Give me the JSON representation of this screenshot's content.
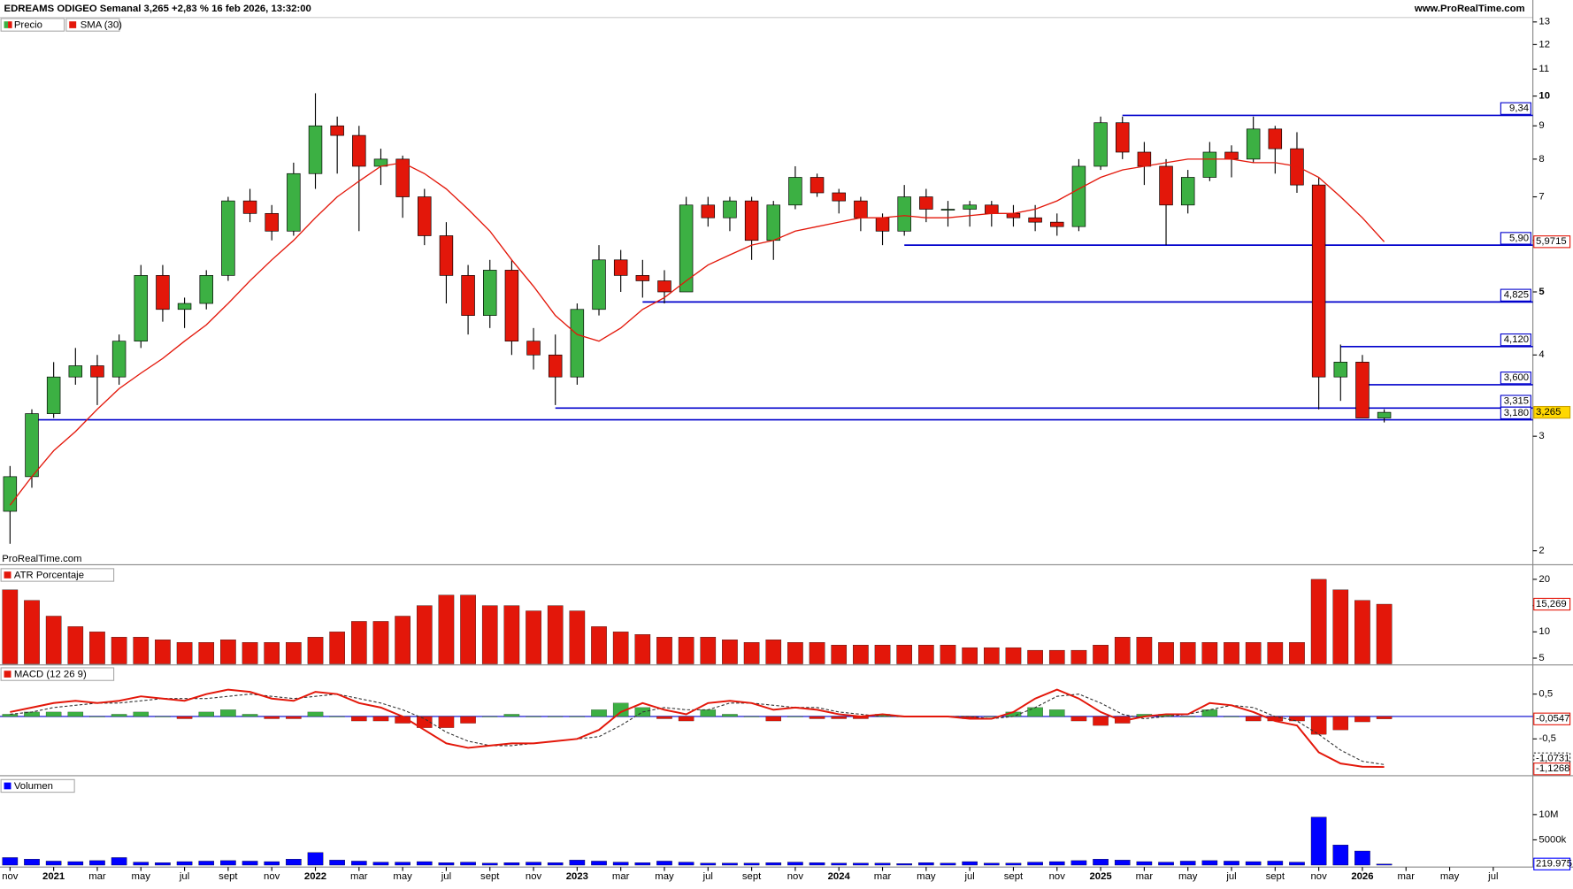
{
  "header": {
    "title": "EDREAMS ODIGEO Semanal 3,265 +2,83 % 16 feb 2026, 13:32:00",
    "site": "www.ProRealTime.com",
    "watermark": "ProRealTime.com"
  },
  "chart_data": [
    {
      "type": "candlestick",
      "legend": [
        "Precio",
        "SMA (30)"
      ],
      "log_scale": true,
      "up_color": "#3cb043",
      "down_color": "#e3170a",
      "x": [
        "2020-11",
        "2020-12",
        "2021-01",
        "2021-02",
        "2021-03",
        "2021-04",
        "2021-05",
        "2021-06",
        "2021-07",
        "2021-08",
        "2021-09",
        "2021-10",
        "2021-11",
        "2021-12",
        "2022-01",
        "2022-02",
        "2022-03",
        "2022-04",
        "2022-05",
        "2022-06",
        "2022-07",
        "2022-08",
        "2022-09",
        "2022-10",
        "2022-11",
        "2022-12",
        "2023-01",
        "2023-02",
        "2023-03",
        "2023-04",
        "2023-05",
        "2023-06",
        "2023-07",
        "2023-08",
        "2023-09",
        "2023-10",
        "2023-11",
        "2023-12",
        "2024-01",
        "2024-02",
        "2024-03",
        "2024-04",
        "2024-05",
        "2024-06",
        "2024-07",
        "2024-08",
        "2024-09",
        "2024-10",
        "2024-11",
        "2024-12",
        "2025-01",
        "2025-02",
        "2025-03",
        "2025-04",
        "2025-05",
        "2025-06",
        "2025-07",
        "2025-08",
        "2025-09",
        "2025-10",
        "2025-11",
        "2025-12",
        "2026-01",
        "2026-02"
      ],
      "open": [
        2.3,
        2.6,
        3.25,
        3.7,
        3.85,
        3.7,
        4.2,
        5.3,
        4.7,
        4.8,
        5.3,
        6.9,
        6.6,
        6.2,
        7.6,
        9.0,
        8.7,
        7.8,
        8.0,
        7.0,
        6.1,
        5.3,
        4.6,
        5.4,
        4.2,
        4.0,
        3.7,
        4.7,
        5.6,
        5.3,
        5.2,
        5.0,
        6.8,
        6.5,
        6.9,
        6.0,
        6.8,
        7.5,
        7.1,
        6.9,
        6.5,
        6.2,
        7.0,
        6.7,
        6.7,
        6.8,
        6.6,
        6.5,
        6.4,
        6.3,
        7.8,
        9.1,
        8.2,
        7.8,
        6.8,
        7.5,
        8.2,
        8.0,
        8.9,
        8.3,
        7.3,
        3.7,
        3.9,
        3.2
      ],
      "high": [
        2.7,
        3.3,
        3.9,
        4.1,
        4.0,
        4.3,
        5.5,
        5.5,
        4.9,
        5.4,
        7.0,
        7.2,
        6.8,
        7.9,
        10.1,
        9.3,
        9.0,
        8.3,
        8.1,
        7.2,
        6.4,
        5.5,
        5.6,
        5.6,
        4.4,
        4.3,
        4.8,
        5.9,
        5.8,
        5.6,
        5.4,
        7.0,
        7.0,
        7.0,
        7.0,
        6.9,
        7.8,
        7.6,
        7.2,
        7.0,
        6.6,
        7.3,
        7.2,
        6.9,
        6.9,
        6.9,
        6.8,
        6.8,
        6.6,
        8.0,
        9.3,
        9.3,
        8.5,
        8.0,
        7.7,
        8.5,
        8.4,
        9.3,
        9.0,
        8.8,
        7.5,
        4.15,
        4.0,
        3.3
      ],
      "low": [
        2.05,
        2.5,
        3.2,
        3.6,
        3.35,
        3.6,
        4.1,
        4.5,
        4.4,
        4.7,
        5.2,
        6.4,
        6.0,
        6.1,
        7.2,
        7.6,
        6.2,
        7.3,
        6.5,
        5.9,
        4.8,
        4.3,
        4.4,
        4.0,
        3.8,
        3.35,
        3.6,
        4.6,
        5.0,
        4.9,
        4.8,
        5.0,
        6.3,
        6.2,
        5.6,
        5.6,
        6.7,
        7.0,
        6.6,
        6.2,
        5.9,
        6.1,
        6.4,
        6.3,
        6.3,
        6.3,
        6.3,
        6.2,
        6.1,
        6.2,
        7.7,
        8.0,
        7.3,
        5.9,
        6.6,
        7.4,
        7.5,
        7.9,
        7.6,
        7.1,
        3.3,
        3.4,
        3.2,
        3.15
      ],
      "close": [
        2.6,
        3.25,
        3.7,
        3.85,
        3.7,
        4.2,
        5.3,
        4.7,
        4.8,
        5.3,
        6.9,
        6.6,
        6.2,
        7.6,
        9.0,
        8.7,
        7.8,
        8.0,
        7.0,
        6.1,
        5.3,
        4.6,
        5.4,
        4.2,
        4.0,
        3.7,
        4.7,
        5.6,
        5.3,
        5.2,
        5.0,
        6.8,
        6.5,
        6.9,
        6.0,
        6.8,
        7.5,
        7.1,
        6.9,
        6.5,
        6.2,
        7.0,
        6.7,
        6.7,
        6.8,
        6.6,
        6.5,
        6.4,
        6.3,
        7.8,
        9.1,
        8.2,
        7.8,
        6.8,
        7.5,
        8.2,
        8.0,
        8.9,
        8.3,
        7.3,
        3.7,
        3.9,
        3.2,
        3.265
      ],
      "close_last_label": "3,265",
      "series": [
        {
          "name": "SMA (30)",
          "color": "#e3170a",
          "last_label": "5,9715",
          "values": [
            2.35,
            2.6,
            2.85,
            3.05,
            3.3,
            3.55,
            3.75,
            3.95,
            4.2,
            4.45,
            4.8,
            5.2,
            5.6,
            6.0,
            6.5,
            7.0,
            7.4,
            7.8,
            7.9,
            7.6,
            7.2,
            6.7,
            6.2,
            5.6,
            5.1,
            4.6,
            4.3,
            4.2,
            4.4,
            4.7,
            4.9,
            5.2,
            5.5,
            5.7,
            5.9,
            6.0,
            6.2,
            6.3,
            6.4,
            6.5,
            6.5,
            6.55,
            6.5,
            6.5,
            6.55,
            6.6,
            6.6,
            6.7,
            6.9,
            7.2,
            7.5,
            7.7,
            7.8,
            7.9,
            8.0,
            8.0,
            8.0,
            7.9,
            7.9,
            7.8,
            7.5,
            7.0,
            6.5,
            5.9715
          ]
        }
      ],
      "levels": [
        {
          "value": 9.34,
          "label": "9,34",
          "from": "2025-02"
        },
        {
          "value": 5.9,
          "label": "5,90",
          "from": "2024-04"
        },
        {
          "value": 4.825,
          "label": "4,825",
          "from": "2023-04"
        },
        {
          "value": 4.12,
          "label": "4,120",
          "from": "2025-12"
        },
        {
          "value": 3.6,
          "label": "3,600",
          "from": "2026-01"
        },
        {
          "value": 3.315,
          "label": "3,315",
          "from": "2022-12"
        },
        {
          "value": 3.18,
          "label": "3,180",
          "from": "2020-12"
        }
      ],
      "level_color": "#0000cc",
      "ylim": [
        1.91,
        14.05
      ],
      "yticks": [
        2,
        3,
        4,
        5,
        6,
        7,
        8,
        9,
        10,
        11,
        12,
        13
      ],
      "xlim": [
        "2020-11",
        "2026-09"
      ],
      "xticks": [
        {
          "value": "2020-11",
          "label": "nov"
        },
        {
          "value": "2021-01",
          "label": "2021"
        },
        {
          "value": "2021-03",
          "label": "mar"
        },
        {
          "value": "2021-05",
          "label": "may"
        },
        {
          "value": "2021-07",
          "label": "jul"
        },
        {
          "value": "2021-09",
          "label": "sept"
        },
        {
          "value": "2021-11",
          "label": "nov"
        },
        {
          "value": "2022-01",
          "label": "2022"
        },
        {
          "value": "2022-03",
          "label": "mar"
        },
        {
          "value": "2022-05",
          "label": "may"
        },
        {
          "value": "2022-07",
          "label": "jul"
        },
        {
          "value": "2022-09",
          "label": "sept"
        },
        {
          "value": "2022-11",
          "label": "nov"
        },
        {
          "value": "2023-01",
          "label": "2023"
        },
        {
          "value": "2023-03",
          "label": "mar"
        },
        {
          "value": "2023-05",
          "label": "may"
        },
        {
          "value": "2023-07",
          "label": "jul"
        },
        {
          "value": "2023-09",
          "label": "sept"
        },
        {
          "value": "2023-11",
          "label": "nov"
        },
        {
          "value": "2024-01",
          "label": "2024"
        },
        {
          "value": "2024-03",
          "label": "mar"
        },
        {
          "value": "2024-05",
          "label": "may"
        },
        {
          "value": "2024-07",
          "label": "jul"
        },
        {
          "value": "2024-09",
          "label": "sept"
        },
        {
          "value": "2024-11",
          "label": "nov"
        },
        {
          "value": "2025-01",
          "label": "2025"
        },
        {
          "value": "2025-03",
          "label": "mar"
        },
        {
          "value": "2025-05",
          "label": "may"
        },
        {
          "value": "2025-07",
          "label": "jul"
        },
        {
          "value": "2025-09",
          "label": "sept"
        },
        {
          "value": "2025-11",
          "label": "nov"
        },
        {
          "value": "2026-01",
          "label": "2026"
        },
        {
          "value": "2026-03",
          "label": "mar"
        },
        {
          "value": "2026-05",
          "label": "may"
        },
        {
          "value": "2026-07",
          "label": "jul"
        }
      ]
    },
    {
      "type": "bar",
      "legend": "ATR Porcentaje",
      "color": "#e3170a",
      "last_label": "15,269",
      "values": [
        18,
        16,
        13,
        11,
        10,
        9,
        9,
        8.5,
        8,
        8,
        8.5,
        8,
        8,
        8,
        9,
        10,
        12,
        12,
        13,
        15,
        17,
        17,
        15,
        15,
        14,
        15,
        14,
        11,
        10,
        9.5,
        9,
        9,
        9,
        8.5,
        8,
        8.5,
        8,
        8,
        7.5,
        7.5,
        7.5,
        7.5,
        7.5,
        7.5,
        7,
        7,
        7,
        6.5,
        6.5,
        6.5,
        7.5,
        9,
        9,
        8,
        8,
        8,
        8,
        8,
        8,
        8,
        20,
        18,
        16,
        15.269
      ],
      "ylim": [
        3.9,
        22.4
      ],
      "yticks": [
        5,
        10,
        15,
        20
      ]
    },
    {
      "type": "macd",
      "legend": "MACD (12 26 9)",
      "series": [
        {
          "name": "MACD",
          "color": "#e3170a",
          "last_label": "-1,1268",
          "values": [
            0.1,
            0.2,
            0.3,
            0.35,
            0.3,
            0.35,
            0.45,
            0.4,
            0.35,
            0.5,
            0.6,
            0.55,
            0.4,
            0.35,
            0.55,
            0.5,
            0.3,
            0.2,
            0.0,
            -0.3,
            -0.6,
            -0.7,
            -0.65,
            -0.6,
            -0.6,
            -0.55,
            -0.5,
            -0.3,
            0.1,
            0.3,
            0.15,
            0.05,
            0.3,
            0.35,
            0.3,
            0.15,
            0.2,
            0.15,
            0.05,
            0.0,
            0.05,
            0.0,
            0.0,
            0.0,
            -0.05,
            -0.05,
            0.1,
            0.4,
            0.6,
            0.4,
            0.1,
            -0.1,
            0.0,
            0.05,
            0.05,
            0.3,
            0.25,
            0.1,
            -0.1,
            -0.2,
            -0.8,
            -1.05,
            -1.12,
            -1.1268
          ]
        },
        {
          "name": "Signal",
          "color": "#333333",
          "last_label": "-1,0731",
          "values": [
            0.05,
            0.1,
            0.2,
            0.25,
            0.3,
            0.3,
            0.35,
            0.4,
            0.4,
            0.4,
            0.45,
            0.5,
            0.45,
            0.4,
            0.45,
            0.5,
            0.4,
            0.3,
            0.15,
            -0.05,
            -0.35,
            -0.55,
            -0.65,
            -0.65,
            -0.6,
            -0.55,
            -0.5,
            -0.45,
            -0.2,
            0.1,
            0.2,
            0.15,
            0.15,
            0.3,
            0.3,
            0.25,
            0.2,
            0.2,
            0.1,
            0.05,
            0.0,
            0.0,
            0.0,
            0.0,
            0.0,
            -0.05,
            0.0,
            0.2,
            0.45,
            0.5,
            0.3,
            0.05,
            -0.05,
            0.0,
            0.05,
            0.15,
            0.25,
            0.2,
            0.0,
            -0.1,
            -0.4,
            -0.75,
            -1.0,
            -1.0731
          ]
        },
        {
          "name": "Histogram",
          "color": "#3cb043",
          "negative_color": "#e3170a",
          "last_label": "-0,0547",
          "values": [
            0.05,
            0.1,
            0.1,
            0.1,
            0,
            0.05,
            0.1,
            0,
            -0.05,
            0.1,
            0.15,
            0.05,
            -0.05,
            -0.05,
            0.1,
            0,
            -0.1,
            -0.1,
            -0.15,
            -0.25,
            -0.25,
            -0.15,
            0,
            0.05,
            0,
            0,
            0,
            0.15,
            0.3,
            0.2,
            -0.05,
            -0.1,
            0.15,
            0.05,
            0,
            -0.1,
            0,
            -0.05,
            -0.05,
            -0.05,
            0.05,
            0,
            0,
            0,
            -0.05,
            0,
            0.1,
            0.2,
            0.15,
            -0.1,
            -0.2,
            -0.15,
            0.05,
            0.05,
            0,
            0.15,
            0,
            -0.1,
            -0.1,
            -0.1,
            -0.4,
            -0.3,
            -0.12,
            -0.0547
          ]
        }
      ],
      "ylim": [
        -1.3,
        1.13
      ],
      "yticks": [
        {
          "value": 0.5,
          "label": "0,5"
        },
        {
          "value": -0.5,
          "label": "-0,5"
        }
      ]
    },
    {
      "type": "bar",
      "legend": "Volumen",
      "color": "#0000ff",
      "last_label": "219.975",
      "values": [
        1500000,
        1200000,
        800000,
        700000,
        900000,
        1500000,
        600000,
        500000,
        700000,
        800000,
        900000,
        800000,
        700000,
        1200000,
        2500000,
        1000000,
        800000,
        600000,
        600000,
        700000,
        500000,
        600000,
        400000,
        500000,
        600000,
        500000,
        1000000,
        800000,
        600000,
        500000,
        800000,
        600000,
        400000,
        400000,
        400000,
        500000,
        600000,
        500000,
        400000,
        400000,
        400000,
        300000,
        500000,
        400000,
        700000,
        400000,
        400000,
        600000,
        700000,
        900000,
        1200000,
        1000000,
        700000,
        600000,
        800000,
        900000,
        800000,
        700000,
        800000,
        600000,
        9500000,
        4000000,
        2800000,
        219975
      ],
      "ylim": [
        0,
        17300000
      ],
      "yticks": [
        {
          "value": 10000000,
          "label": "10M"
        },
        {
          "value": 5000000,
          "label": "5000k"
        }
      ]
    }
  ]
}
